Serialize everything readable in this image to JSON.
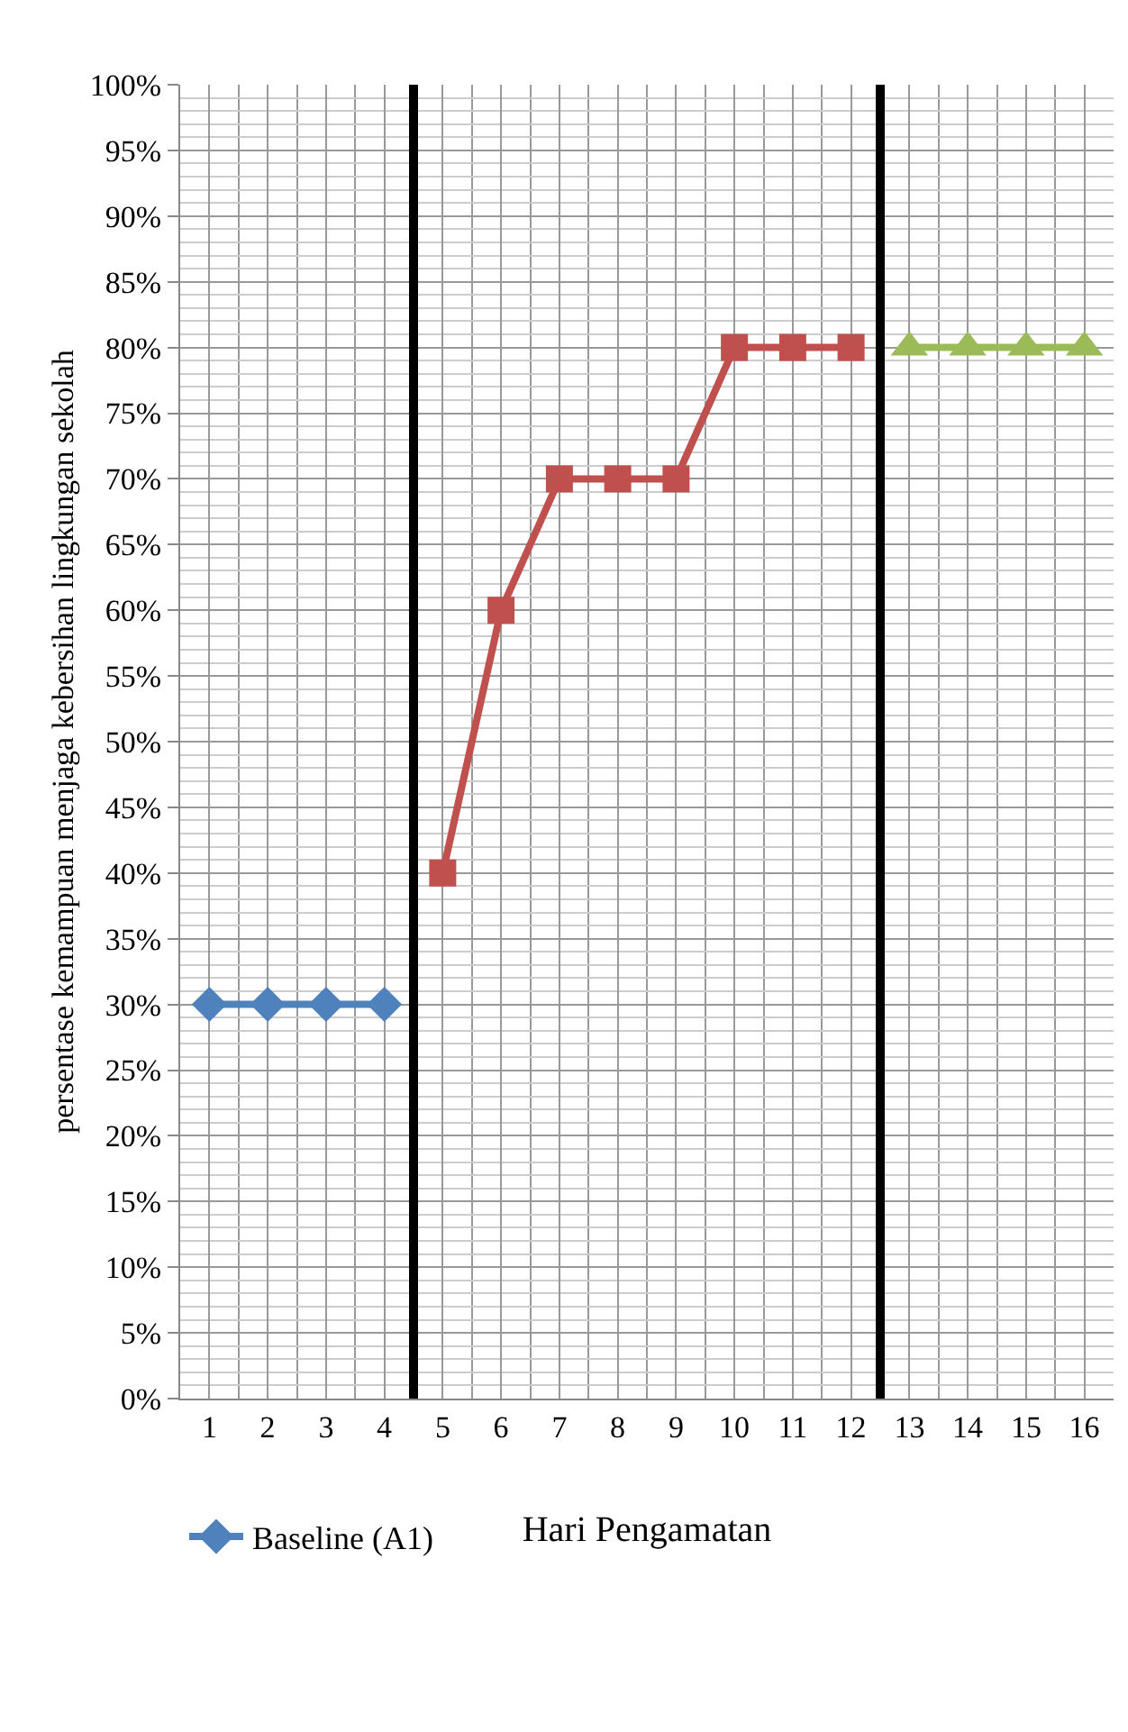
{
  "chart_data": {
    "type": "line",
    "xlabel": "Hari Pengamatan",
    "ylabel": "persentase kemampuan menjaga kebersihan lingkungan sekolah",
    "xlim": [
      0.5,
      16.5
    ],
    "xticks": [
      1,
      2,
      3,
      4,
      5,
      6,
      7,
      8,
      9,
      10,
      11,
      12,
      13,
      14,
      15,
      16
    ],
    "ylim": [
      0,
      100
    ],
    "yticks": [
      {
        "value": 0,
        "label": "0%"
      },
      {
        "value": 5,
        "label": "5%"
      },
      {
        "value": 10,
        "label": "10%"
      },
      {
        "value": 15,
        "label": "15%"
      },
      {
        "value": 20,
        "label": "20%"
      },
      {
        "value": 25,
        "label": "25%"
      },
      {
        "value": 30,
        "label": "30%"
      },
      {
        "value": 35,
        "label": "35%"
      },
      {
        "value": 40,
        "label": "40%"
      },
      {
        "value": 45,
        "label": "45%"
      },
      {
        "value": 50,
        "label": "50%"
      },
      {
        "value": 55,
        "label": "55%"
      },
      {
        "value": 60,
        "label": "60%"
      },
      {
        "value": 65,
        "label": "65%"
      },
      {
        "value": 70,
        "label": "70%"
      },
      {
        "value": 75,
        "label": "75%"
      },
      {
        "value": 80,
        "label": "80%"
      },
      {
        "value": 85,
        "label": "85%"
      },
      {
        "value": 90,
        "label": "90%"
      },
      {
        "value": 95,
        "label": "95%"
      },
      {
        "value": 100,
        "label": "100%"
      }
    ],
    "grid": true,
    "legend": "bottom left",
    "line_style": "solid",
    "series": [
      {
        "name": "Baseline (A1)",
        "color": "#4f81bd",
        "marker": "diamond",
        "x": [
          1,
          2,
          3,
          4
        ],
        "values": [
          30,
          30,
          30,
          30
        ]
      },
      {
        "color": "#c0504d",
        "marker": "square",
        "x": [
          5,
          6,
          7,
          8,
          9,
          10,
          11,
          12
        ],
        "values": [
          40,
          60,
          70,
          70,
          70,
          80,
          80,
          80
        ]
      },
      {
        "color": "#9bbb59",
        "marker": "triangle",
        "x": [
          13,
          14,
          15,
          16
        ],
        "values": [
          80,
          80,
          80,
          80
        ]
      }
    ],
    "ref_lines": [
      {
        "axis": "x",
        "value": 4.5,
        "color": "#000000"
      },
      {
        "axis": "x",
        "value": 12.5,
        "color": "#000000"
      }
    ]
  }
}
